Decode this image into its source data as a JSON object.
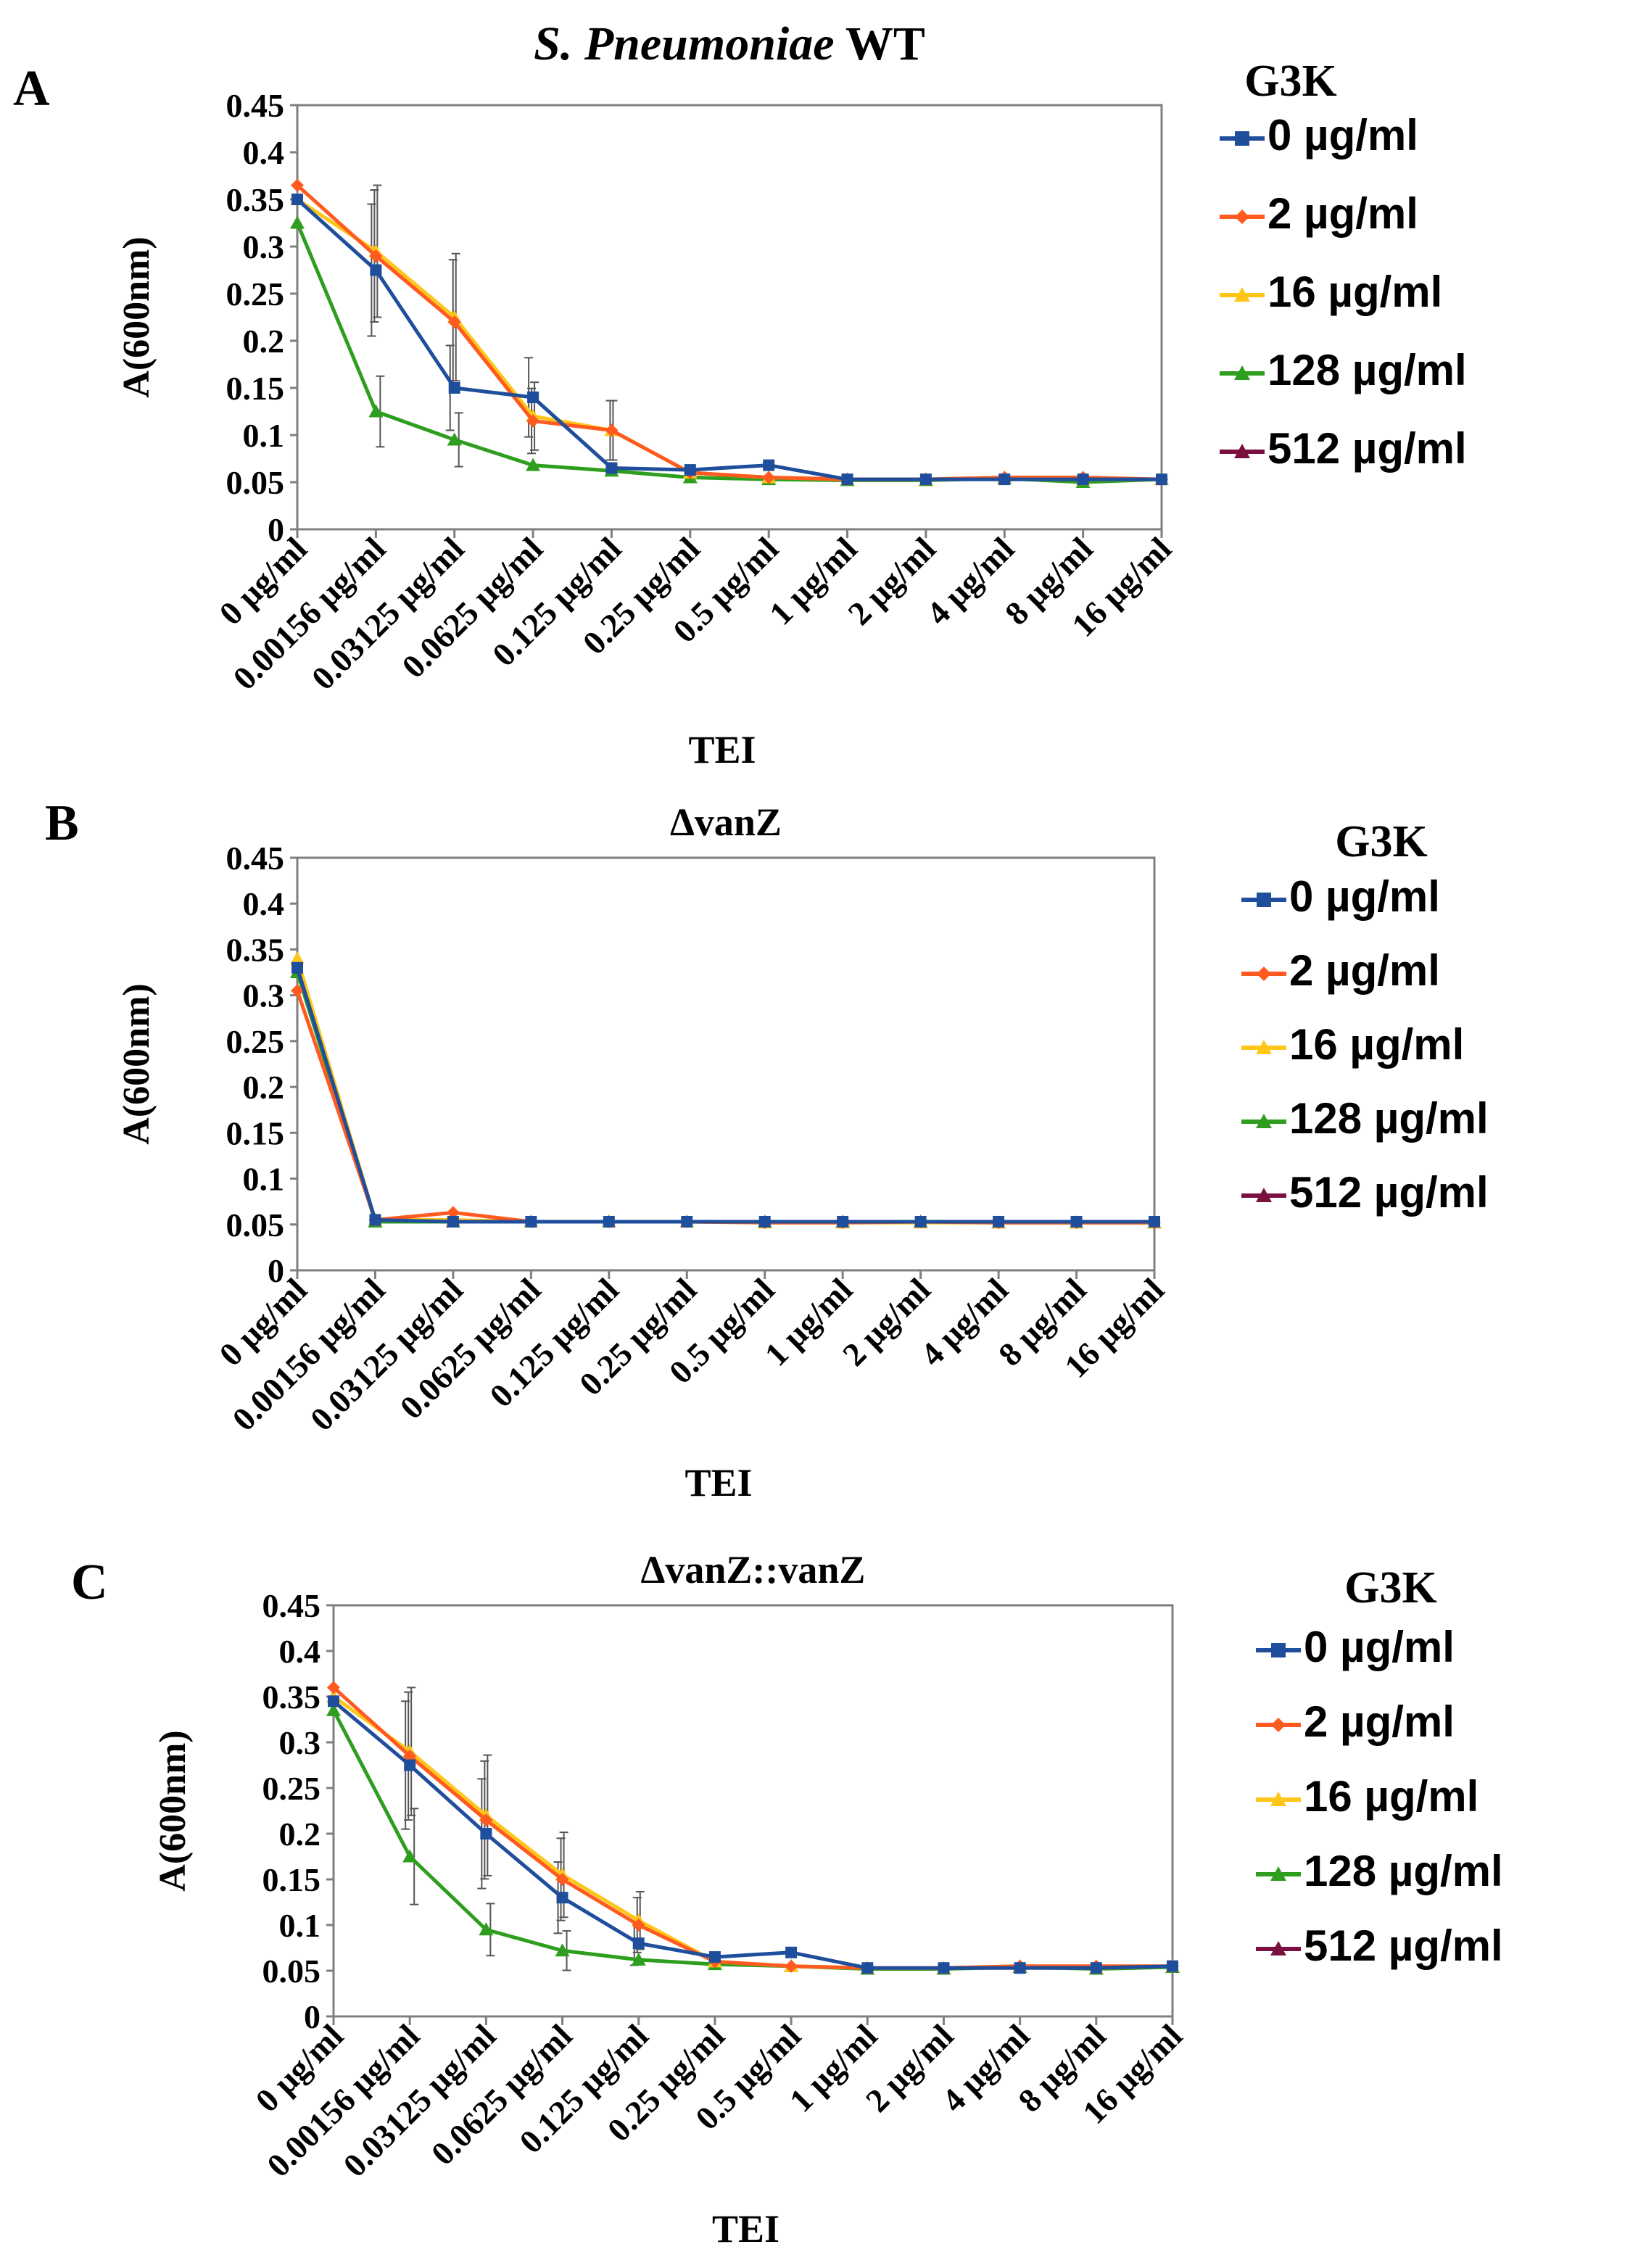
{
  "figure": {
    "x_categories": [
      "0 µg/ml",
      "0.00156 µg/ml",
      "0.03125 µg/ml",
      "0.0625 µg/ml",
      "0.125 µg/ml",
      "0.25 µg/ml",
      "0.5 µg/ml",
      "1 µg/ml",
      "2 µg/ml",
      "4 µg/ml",
      "8 µg/ml",
      "16 µg/ml"
    ],
    "y_ticks": [
      "0",
      "0.05",
      "0.1",
      "0.15",
      "0.2",
      "0.25",
      "0.3",
      "0.35",
      "0.4",
      "0.45"
    ],
    "ylabel": "A(600nm)",
    "xlabel": "TEI",
    "legend_title": "G3K",
    "series_names": [
      "0 µg/ml",
      "2 µg/ml",
      "16 µg/ml",
      "128 µg/ml",
      "512 µg/ml"
    ],
    "series_legend_text": [
      " 0 µg/ml",
      " 2 µg/ml",
      " 16 µg/ml",
      " 128 µg/ml",
      "  512 µg/ml"
    ],
    "series_colors": [
      "#1f4e9c",
      "#ff5a1f",
      "#ffc61a",
      "#2e9e1e",
      "#7a1040"
    ]
  },
  "chart_data": [
    {
      "panel": "A",
      "type": "line",
      "title": "S. Pneumoniae WT",
      "title_parts": {
        "italic": "S. Pneumoniae",
        "normal": " WT"
      },
      "ylim": [
        0,
        0.45
      ],
      "series": [
        {
          "name": "0 µg/ml",
          "values": [
            0.35,
            0.275,
            0.15,
            0.14,
            0.065,
            0.063,
            0.068,
            0.053,
            0.053,
            0.053,
            0.053,
            0.053
          ]
        },
        {
          "name": "2 µg/ml",
          "values": [
            0.365,
            0.29,
            0.22,
            0.115,
            0.105,
            0.06,
            0.055,
            0.053,
            0.053,
            0.055,
            0.055,
            0.053
          ]
        },
        {
          "name": "16 µg/ml",
          "values": [
            0.35,
            0.295,
            0.225,
            0.12,
            0.105,
            0.06,
            0.055,
            0.053,
            0.053,
            0.055,
            0.053,
            0.053
          ]
        },
        {
          "name": "128 µg/ml",
          "values": [
            0.325,
            0.125,
            0.095,
            0.068,
            0.062,
            0.055,
            0.053,
            0.052,
            0.052,
            0.054,
            0.05,
            0.053
          ]
        },
        {
          "name": "512 µg/ml",
          "values": []
        }
      ]
    },
    {
      "panel": "B",
      "type": "line",
      "title": "ΔvanZ",
      "ylim": [
        0,
        0.45
      ],
      "series": [
        {
          "name": "0 µg/ml",
          "values": [
            0.33,
            0.055,
            0.053,
            0.053,
            0.053,
            0.053,
            0.053,
            0.053,
            0.053,
            0.053,
            0.053,
            0.053
          ]
        },
        {
          "name": "2 µg/ml",
          "values": [
            0.305,
            0.055,
            0.063,
            0.053,
            0.053,
            0.053,
            0.052,
            0.052,
            0.053,
            0.052,
            0.052,
            0.052
          ]
        },
        {
          "name": "16 µg/ml",
          "values": [
            0.34,
            0.055,
            0.055,
            0.053,
            0.053,
            0.053,
            0.052,
            0.052,
            0.052,
            0.052,
            0.052,
            0.052
          ]
        },
        {
          "name": "128 µg/ml",
          "values": [
            0.325,
            0.053,
            0.053,
            0.053,
            0.053,
            0.053,
            0.053,
            0.053,
            0.053,
            0.052,
            0.052,
            0.052
          ]
        },
        {
          "name": "512 µg/ml",
          "values": []
        }
      ]
    },
    {
      "panel": "C",
      "type": "line",
      "title": "ΔvanZ::vanZ",
      "ylim": [
        0,
        0.45
      ],
      "series": [
        {
          "name": "0 µg/ml",
          "values": [
            0.345,
            0.275,
            0.2,
            0.13,
            0.08,
            0.065,
            0.07,
            0.053,
            0.053,
            0.053,
            0.053,
            0.055
          ]
        },
        {
          "name": "2 µg/ml",
          "values": [
            0.36,
            0.285,
            0.215,
            0.15,
            0.1,
            0.06,
            0.055,
            0.053,
            0.053,
            0.055,
            0.055,
            0.055
          ]
        },
        {
          "name": "16 µg/ml",
          "values": [
            0.35,
            0.29,
            0.22,
            0.155,
            0.105,
            0.06,
            0.055,
            0.053,
            0.053,
            0.055,
            0.053,
            0.055
          ]
        },
        {
          "name": "128 µg/ml",
          "values": [
            0.335,
            0.175,
            0.095,
            0.072,
            0.062,
            0.057,
            0.055,
            0.052,
            0.052,
            0.054,
            0.052,
            0.054
          ]
        },
        {
          "name": "512 µg/ml",
          "values": []
        }
      ]
    }
  ]
}
